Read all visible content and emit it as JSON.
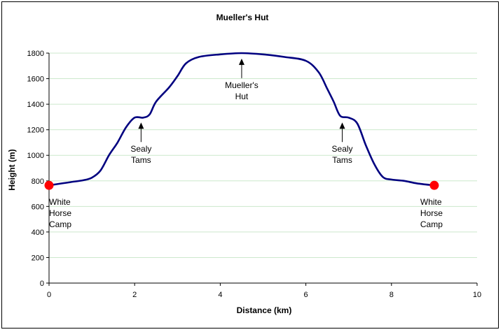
{
  "chart_data": {
    "type": "line",
    "title": "Mueller's Hut",
    "xlabel": "Distance (km)",
    "ylabel": "Height (m)",
    "xlim": [
      0,
      10
    ],
    "ylim": [
      0,
      1800
    ],
    "x_ticks": [
      "0",
      "2",
      "4",
      "6",
      "8",
      "10"
    ],
    "y_ticks": [
      "0",
      "200",
      "400",
      "600",
      "800",
      "1000",
      "1200",
      "1400",
      "1600",
      "1800"
    ],
    "grid": true,
    "legend": "none",
    "series": [
      {
        "color": "#000080",
        "points": [
          [
            0,
            765
          ],
          [
            0.3,
            780
          ],
          [
            0.5,
            790
          ],
          [
            0.8,
            805
          ],
          [
            1.0,
            825
          ],
          [
            1.2,
            880
          ],
          [
            1.4,
            1000
          ],
          [
            1.6,
            1100
          ],
          [
            1.8,
            1220
          ],
          [
            2.0,
            1295
          ],
          [
            2.2,
            1295
          ],
          [
            2.35,
            1320
          ],
          [
            2.5,
            1420
          ],
          [
            2.8,
            1530
          ],
          [
            3.0,
            1620
          ],
          [
            3.2,
            1720
          ],
          [
            3.5,
            1770
          ],
          [
            4.0,
            1790
          ],
          [
            4.5,
            1800
          ],
          [
            5.0,
            1790
          ],
          [
            5.5,
            1770
          ],
          [
            6.0,
            1740
          ],
          [
            6.3,
            1650
          ],
          [
            6.5,
            1520
          ],
          [
            6.65,
            1420
          ],
          [
            6.8,
            1310
          ],
          [
            7.0,
            1295
          ],
          [
            7.2,
            1250
          ],
          [
            7.4,
            1080
          ],
          [
            7.6,
            930
          ],
          [
            7.8,
            830
          ],
          [
            8.0,
            810
          ],
          [
            8.3,
            800
          ],
          [
            8.6,
            780
          ],
          [
            9.0,
            765
          ]
        ]
      }
    ],
    "markers": [
      {
        "x": 0,
        "y": 765,
        "color": "#ff0000"
      },
      {
        "x": 9,
        "y": 765,
        "color": "#ff0000"
      }
    ],
    "annotations": [
      {
        "lines": [
          "Sealy",
          "Tams"
        ],
        "x": 2.15,
        "y": 1290,
        "arrow": true
      },
      {
        "lines": [
          "Mueller's",
          "Hut"
        ],
        "x": 4.5,
        "y": 1790,
        "arrow": true
      },
      {
        "lines": [
          "Sealy",
          "Tams"
        ],
        "x": 6.85,
        "y": 1290,
        "arrow": true
      },
      {
        "lines": [
          "White",
          "Horse",
          "Camp"
        ],
        "x": 0,
        "y": 765,
        "arrow": false
      },
      {
        "lines": [
          "White",
          "Horse",
          "Camp"
        ],
        "x": 9,
        "y": 765,
        "arrow": false
      }
    ],
    "line_color": "#000080",
    "grid_color": "#cce8cc"
  }
}
